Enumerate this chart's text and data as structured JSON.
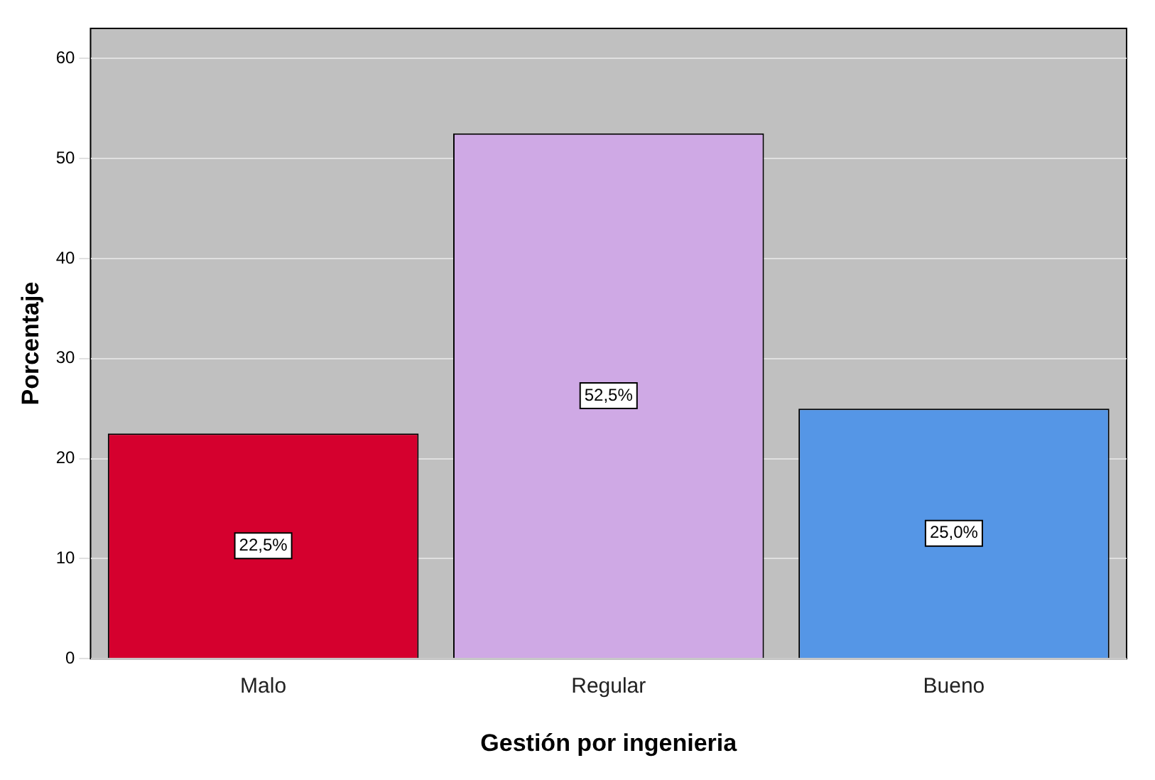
{
  "chart_data": {
    "type": "bar",
    "xlabel": "Gestión por ingenieria",
    "ylabel": "Porcentaje",
    "categories": [
      "Malo",
      "Regular",
      "Bueno"
    ],
    "values": [
      22.5,
      52.5,
      25.0
    ],
    "colors": [
      "#d5002e",
      "#cfa9e5",
      "#5596e6"
    ],
    "value_labels": [
      "22,5%",
      "52,5%",
      "25,0%"
    ],
    "ylim": [
      0,
      63
    ],
    "yticks": [
      0,
      10,
      20,
      30,
      40,
      50,
      60
    ],
    "grid": "y"
  }
}
